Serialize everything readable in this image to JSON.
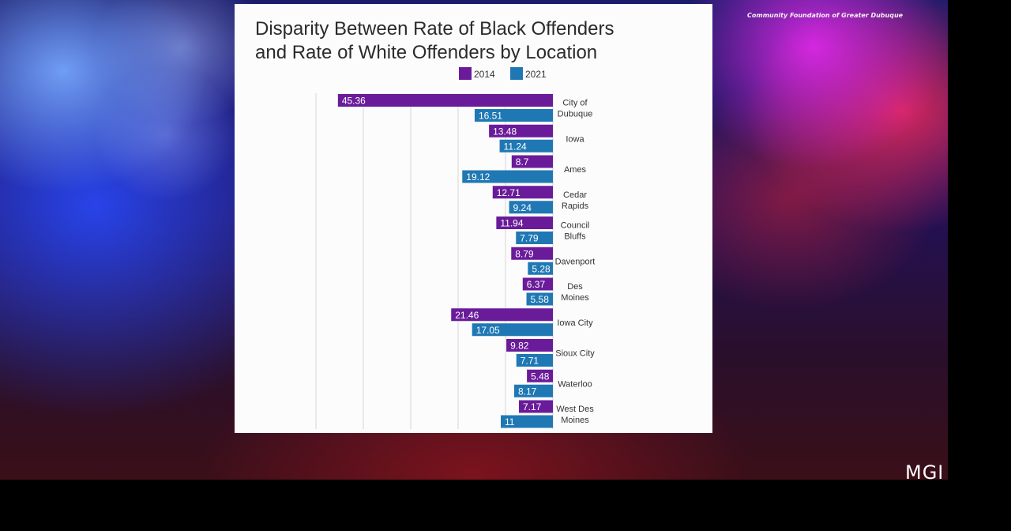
{
  "overlay": {
    "source_credit": "Community Foundation of Greater Dubuque",
    "broadcaster_logo": "MGI"
  },
  "colors": {
    "series_2014": "#6a1b9a",
    "series_2021": "#1f78b4",
    "grid": "#d6d6d6",
    "title": "#2b2b2b"
  },
  "chart_data": {
    "type": "bar",
    "orientation": "horizontal",
    "title": "Disparity Between Rate of Black Offenders and Rate of White Offenders by Location",
    "title_lines": [
      "Disparity Between Rate of Black Offenders",
      "and Rate of White Offenders by Location"
    ],
    "xlabel": "",
    "ylabel": "",
    "legend_position": "top-center",
    "grid": true,
    "xlim": [
      0,
      50
    ],
    "categories": [
      "City of Dubuque",
      "Iowa",
      "Ames",
      "Cedar Rapids",
      "Council Bluffs",
      "Davenport",
      "Des Moines",
      "Iowa City",
      "Sioux City",
      "Waterloo",
      "West Des Moines"
    ],
    "category_label_lines": [
      [
        "City of",
        "Dubuque"
      ],
      [
        "Iowa"
      ],
      [
        "Ames"
      ],
      [
        "Cedar",
        "Rapids"
      ],
      [
        "Council",
        "Bluffs"
      ],
      [
        "Davenport"
      ],
      [
        "Des",
        "Moines"
      ],
      [
        "Iowa City"
      ],
      [
        "Sioux City"
      ],
      [
        "Waterloo"
      ],
      [
        "West Des",
        "Moines"
      ]
    ],
    "series": [
      {
        "name": "2014",
        "values": [
          45.36,
          13.48,
          8.7,
          12.71,
          11.94,
          8.79,
          6.37,
          21.46,
          9.82,
          5.48,
          7.17
        ]
      },
      {
        "name": "2021",
        "values": [
          16.51,
          11.24,
          19.12,
          9.24,
          7.79,
          5.28,
          5.58,
          17.05,
          7.71,
          8.17,
          11
        ]
      }
    ]
  }
}
